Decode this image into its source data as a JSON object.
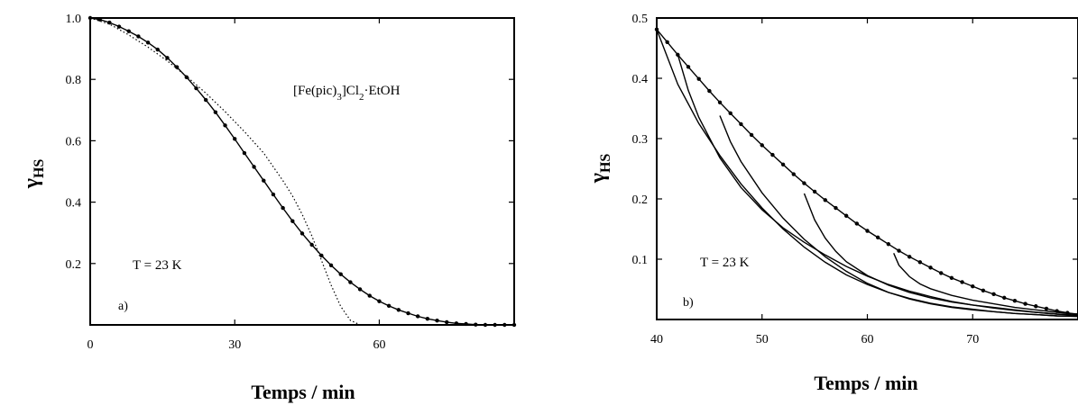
{
  "chart_data": [
    {
      "type": "line",
      "panel_label": "a)",
      "annotation": "T = 23 K",
      "xlabel": "Temps / min",
      "ylabel_main": "γ",
      "ylabel_sub": "HS",
      "xlim": [
        0,
        88
      ],
      "ylim": [
        0,
        1.0
      ],
      "xticks": [
        "0",
        "30",
        "60"
      ],
      "xtick_values": [
        0,
        30,
        60
      ],
      "yticks": [
        "0.2",
        "0.4",
        "0.6",
        "0.8",
        "1.0"
      ],
      "ytick_values": [
        0.2,
        0.4,
        0.6,
        0.8,
        1.0
      ],
      "compound": {
        "pre": "[Fe(pic)",
        "s1": "3",
        "mid": "]Cl",
        "s2": "2",
        "post": "·EtOH"
      },
      "series": [
        {
          "style": "solid-markers",
          "x": [
            0,
            2,
            4,
            6,
            8,
            10,
            12,
            14,
            16,
            18,
            20,
            22,
            24,
            26,
            28,
            30,
            32,
            34,
            36,
            38,
            40,
            42,
            44,
            46,
            48,
            50,
            52,
            54,
            56,
            58,
            60,
            62,
            64,
            66,
            68,
            70,
            72,
            74,
            76,
            78,
            80,
            82,
            84,
            86,
            88
          ],
          "y": [
            1.0,
            0.995,
            0.985,
            0.972,
            0.957,
            0.94,
            0.92,
            0.897,
            0.87,
            0.84,
            0.807,
            0.771,
            0.733,
            0.693,
            0.65,
            0.606,
            0.56,
            0.515,
            0.47,
            0.425,
            0.381,
            0.338,
            0.298,
            0.261,
            0.226,
            0.194,
            0.165,
            0.139,
            0.116,
            0.095,
            0.077,
            0.062,
            0.049,
            0.038,
            0.028,
            0.02,
            0.014,
            0.009,
            0.005,
            0.003,
            0.001,
            0.0,
            0.0,
            0.0,
            0.0
          ]
        },
        {
          "style": "dotted",
          "x": [
            0,
            4,
            8,
            12,
            16,
            20,
            24,
            28,
            32,
            36,
            40,
            42,
            44,
            46,
            48,
            50,
            52,
            54,
            56
          ],
          "y": [
            1.0,
            0.98,
            0.945,
            0.905,
            0.86,
            0.81,
            0.755,
            0.695,
            0.63,
            0.56,
            0.47,
            0.42,
            0.36,
            0.29,
            0.21,
            0.13,
            0.06,
            0.015,
            0.0
          ]
        }
      ]
    },
    {
      "type": "line",
      "panel_label": "b)",
      "annotation": "T = 23 K",
      "xlabel": "Temps / min",
      "ylabel_main": "γ",
      "ylabel_sub": "HS",
      "xlim": [
        40,
        80
      ],
      "ylim": [
        0,
        0.5
      ],
      "xticks": [
        "40",
        "50",
        "60",
        "70"
      ],
      "xtick_values": [
        40,
        50,
        60,
        70
      ],
      "yticks": [
        "0.1",
        "0.2",
        "0.3",
        "0.4",
        "0.5"
      ],
      "ytick_values": [
        0.1,
        0.2,
        0.3,
        0.4,
        0.5
      ],
      "series": [
        {
          "style": "solid-markers",
          "x": [
            40,
            41,
            42,
            43,
            44,
            45,
            46,
            47,
            48,
            49,
            50,
            51,
            52,
            53,
            54,
            55,
            56,
            57,
            58,
            59,
            60,
            61,
            62,
            63,
            64,
            65,
            66,
            67,
            68,
            69,
            70,
            71,
            72,
            73,
            74,
            75,
            76,
            77,
            78,
            79,
            80
          ],
          "y": [
            0.481,
            0.46,
            0.439,
            0.419,
            0.399,
            0.379,
            0.36,
            0.342,
            0.324,
            0.306,
            0.289,
            0.273,
            0.257,
            0.241,
            0.226,
            0.212,
            0.198,
            0.185,
            0.172,
            0.159,
            0.147,
            0.136,
            0.125,
            0.114,
            0.104,
            0.095,
            0.086,
            0.077,
            0.069,
            0.062,
            0.055,
            0.048,
            0.042,
            0.036,
            0.031,
            0.026,
            0.022,
            0.018,
            0.014,
            0.011,
            0.008
          ]
        },
        {
          "style": "solid",
          "x": [
            40,
            42,
            44,
            46,
            48,
            50,
            52,
            54,
            56,
            58,
            60,
            62,
            64,
            66,
            68,
            70,
            72,
            74,
            76,
            78,
            80
          ],
          "y": [
            0.481,
            0.39,
            0.325,
            0.272,
            0.225,
            0.185,
            0.15,
            0.12,
            0.095,
            0.074,
            0.058,
            0.045,
            0.035,
            0.027,
            0.021,
            0.017,
            0.013,
            0.01,
            0.008,
            0.006,
            0.005
          ]
        },
        {
          "style": "solid",
          "x": [
            42,
            43,
            44,
            46,
            48,
            50,
            52,
            54,
            56,
            58,
            60,
            62,
            64,
            66,
            68,
            70,
            72,
            74,
            76,
            78,
            80
          ],
          "y": [
            0.439,
            0.38,
            0.335,
            0.268,
            0.219,
            0.182,
            0.152,
            0.128,
            0.107,
            0.088,
            0.072,
            0.058,
            0.047,
            0.038,
            0.03,
            0.024,
            0.019,
            0.015,
            0.012,
            0.009,
            0.007
          ]
        },
        {
          "style": "solid",
          "x": [
            46,
            47,
            48,
            50,
            52,
            54,
            56,
            58,
            60,
            62,
            64,
            66,
            68,
            70,
            72,
            74,
            76,
            78,
            80
          ],
          "y": [
            0.338,
            0.295,
            0.262,
            0.21,
            0.168,
            0.133,
            0.104,
            0.08,
            0.06,
            0.045,
            0.034,
            0.026,
            0.02,
            0.016,
            0.013,
            0.01,
            0.008,
            0.006,
            0.005
          ]
        },
        {
          "style": "solid",
          "x": [
            54,
            55,
            56,
            57,
            58,
            60,
            62,
            64,
            66,
            68,
            70,
            72,
            74,
            76,
            78,
            80
          ],
          "y": [
            0.209,
            0.165,
            0.135,
            0.113,
            0.096,
            0.073,
            0.057,
            0.045,
            0.036,
            0.029,
            0.024,
            0.02,
            0.016,
            0.012,
            0.009,
            0.007
          ]
        },
        {
          "style": "solid",
          "x": [
            62.5,
            63,
            64,
            65,
            66,
            68,
            70,
            72,
            74,
            76,
            78,
            80
          ],
          "y": [
            0.11,
            0.09,
            0.071,
            0.059,
            0.051,
            0.04,
            0.032,
            0.026,
            0.02,
            0.016,
            0.012,
            0.009
          ]
        }
      ]
    }
  ]
}
